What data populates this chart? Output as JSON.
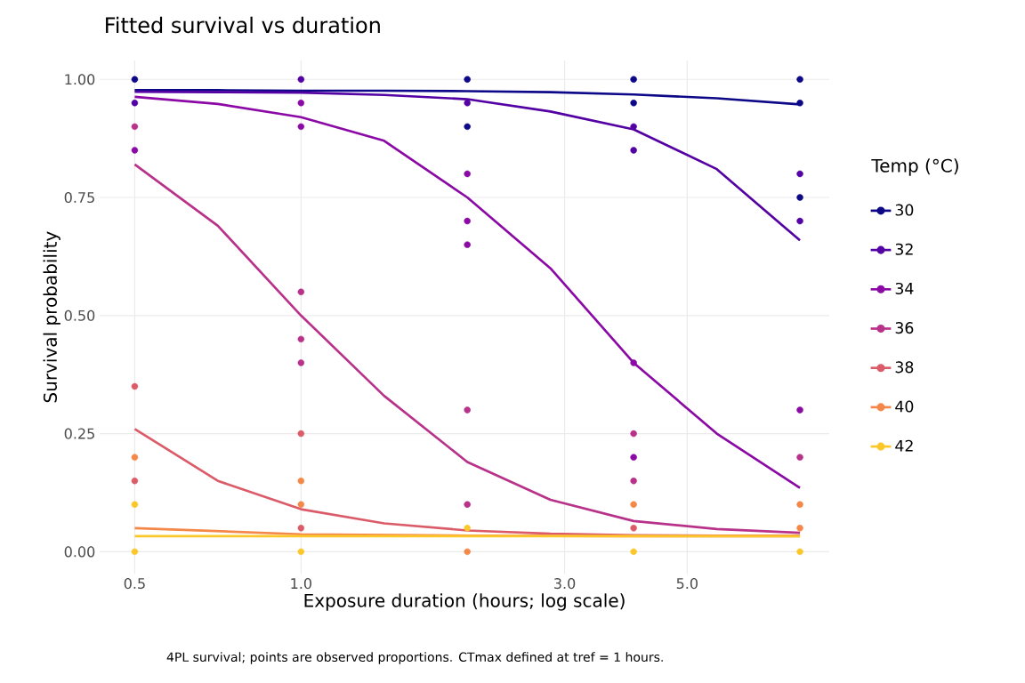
{
  "chart_data": {
    "type": "line",
    "title": "Fitted survival vs duration",
    "xlabel": "Exposure duration (hours; log scale)",
    "ylabel": "Survival probability",
    "legend_title": "Temp (°C)",
    "annotations": [
      "4PL survival; points are observed proportions. CTmax defined at tref = 1 hours."
    ],
    "log": "x",
    "grid": true,
    "legend": "right",
    "xlim": [
      0.432,
      9.04
    ],
    "xticks": [
      0.5,
      {
        "value": 1,
        "label": "1.0"
      },
      {
        "value": 3,
        "label": "3.0"
      },
      {
        "value": 5,
        "label": "5.0"
      }
    ],
    "ylim": [
      -0.047,
      1.04
    ],
    "yticks": [
      {
        "value": 0,
        "label": "0.00"
      },
      {
        "value": 0.25,
        "label": "0.25"
      },
      {
        "value": 0.5,
        "label": "0.50"
      },
      {
        "value": 0.75,
        "label": "0.75"
      },
      {
        "value": 1,
        "label": "1.00"
      }
    ],
    "series": [
      {
        "type": "line",
        "name": "30",
        "color": "#0d0887",
        "x": [
          0.5,
          0.707,
          1,
          1.414,
          2,
          2.828,
          4,
          5.657,
          8
        ],
        "values": [
          0.977,
          0.977,
          0.976,
          0.976,
          0.975,
          0.973,
          0.968,
          0.96,
          0.947
        ]
      },
      {
        "type": "line",
        "name": "32",
        "color": "#5402a3",
        "x": [
          0.5,
          0.707,
          1,
          1.414,
          2,
          2.828,
          4,
          5.657,
          8
        ],
        "values": [
          0.974,
          0.973,
          0.972,
          0.967,
          0.958,
          0.932,
          0.894,
          0.81,
          0.659
        ]
      },
      {
        "type": "line",
        "name": "34",
        "color": "#8b0aa5",
        "x": [
          0.5,
          0.707,
          1,
          1.414,
          2,
          2.828,
          4,
          5.657,
          8
        ],
        "values": [
          0.963,
          0.948,
          0.92,
          0.87,
          0.75,
          0.6,
          0.4,
          0.25,
          0.135
        ]
      },
      {
        "type": "line",
        "name": "36",
        "color": "#b83289",
        "x": [
          0.5,
          0.707,
          1,
          1.414,
          2,
          2.828,
          4,
          5.657,
          8
        ],
        "values": [
          0.82,
          0.69,
          0.5,
          0.33,
          0.19,
          0.11,
          0.065,
          0.048,
          0.04
        ]
      },
      {
        "type": "line",
        "name": "38",
        "color": "#db5c68",
        "x": [
          0.5,
          0.707,
          1,
          1.414,
          2,
          2.828,
          4,
          5.657,
          8
        ],
        "values": [
          0.26,
          0.15,
          0.09,
          0.06,
          0.045,
          0.038,
          0.035,
          0.034,
          0.034
        ]
      },
      {
        "type": "line",
        "name": "40",
        "color": "#f48849",
        "x": [
          0.5,
          1,
          2,
          4,
          8
        ],
        "values": [
          0.05,
          0.037,
          0.034,
          0.033,
          0.033
        ]
      },
      {
        "type": "line",
        "name": "42",
        "color": "#fbc72a",
        "x": [
          0.5,
          1,
          2,
          4,
          8
        ],
        "values": [
          0.033,
          0.033,
          0.033,
          0.033,
          0.033
        ]
      },
      {
        "type": "scatter",
        "marker": "circle",
        "color": "#0d0887",
        "x": [
          0.5,
          2,
          2,
          4,
          4,
          8,
          8,
          8
        ],
        "values": [
          1,
          1,
          0.9,
          1,
          0.95,
          1,
          0.95,
          0.75
        ]
      },
      {
        "type": "scatter",
        "marker": "circle",
        "color": "#5402a3",
        "x": [
          0.5,
          1,
          2,
          4,
          4,
          8,
          8
        ],
        "values": [
          0.95,
          1,
          0.95,
          0.9,
          0.85,
          0.8,
          0.7
        ]
      },
      {
        "type": "scatter",
        "marker": "circle",
        "color": "#8b0aa5",
        "x": [
          0.5,
          1,
          1,
          2,
          2,
          2,
          4,
          4,
          8
        ],
        "values": [
          0.85,
          0.95,
          0.9,
          0.8,
          0.7,
          0.65,
          0.4,
          0.2,
          0.3
        ]
      },
      {
        "type": "scatter",
        "marker": "circle",
        "color": "#b83289",
        "x": [
          0.5,
          1,
          1,
          1,
          2,
          2,
          4,
          4,
          8
        ],
        "values": [
          0.9,
          0.55,
          0.45,
          0.4,
          0.3,
          0.1,
          0.25,
          0.15,
          0.2
        ]
      },
      {
        "type": "scatter",
        "marker": "circle",
        "color": "#db5c68",
        "x": [
          0.5,
          0.5,
          1,
          1,
          4
        ],
        "values": [
          0.35,
          0.15,
          0.25,
          0.05,
          0.05
        ]
      },
      {
        "type": "scatter",
        "marker": "circle",
        "color": "#f48849",
        "x": [
          0.5,
          1,
          1,
          2,
          4,
          8,
          8
        ],
        "values": [
          0.2,
          0.15,
          0.1,
          0,
          0.1,
          0.1,
          0.05
        ]
      },
      {
        "type": "scatter",
        "marker": "circle",
        "color": "#fbc72a",
        "x": [
          0.5,
          0.5,
          1,
          2,
          4,
          8
        ],
        "values": [
          0.1,
          0,
          0,
          0.05,
          0,
          0
        ]
      }
    ]
  }
}
